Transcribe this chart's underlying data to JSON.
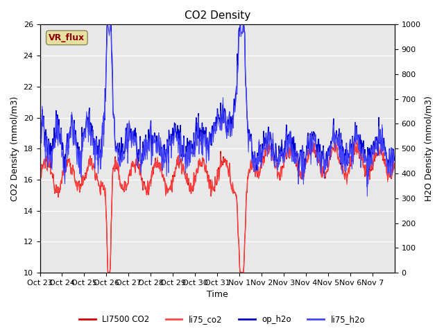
{
  "title": "CO2 Density",
  "xlabel": "Time",
  "ylabel_left": "CO2 Density (mmol/m3)",
  "ylabel_right": "H2O Density (mmol/m3)",
  "ylim_left": [
    10,
    26
  ],
  "ylim_right": [
    0,
    1000
  ],
  "yticks_left": [
    10,
    12,
    14,
    16,
    18,
    20,
    22,
    24,
    26
  ],
  "yticks_right": [
    0,
    100,
    200,
    300,
    400,
    500,
    600,
    700,
    800,
    900,
    1000
  ],
  "xtick_labels": [
    "Oct 23",
    "Oct 24",
    "Oct 25",
    "Oct 26",
    "Oct 27",
    "Oct 28",
    "Oct 29",
    "Oct 30",
    "Oct 31",
    "Nov 1",
    "Nov 2",
    "Nov 3",
    "Nov 4",
    "Nov 5",
    "Nov 6",
    "Nov 7"
  ],
  "annotation_text": "VR_flux",
  "annotation_facecolor": "#e8e0a0",
  "annotation_edgecolor": "#888855",
  "annotation_textcolor": "#880000",
  "legend_entries": [
    "LI7500 CO2",
    "li75_co2",
    "op_h2o",
    "li75_h2o"
  ],
  "colors": {
    "LI7500_CO2": "#dd0000",
    "li75_co2": "#ff4444",
    "op_h2o": "#0000cc",
    "li75_h2o": "#4444ff"
  },
  "background_color": "#e8e8e8",
  "grid_color": "#ffffff",
  "title_fontsize": 11,
  "axis_label_fontsize": 9,
  "tick_fontsize": 8
}
